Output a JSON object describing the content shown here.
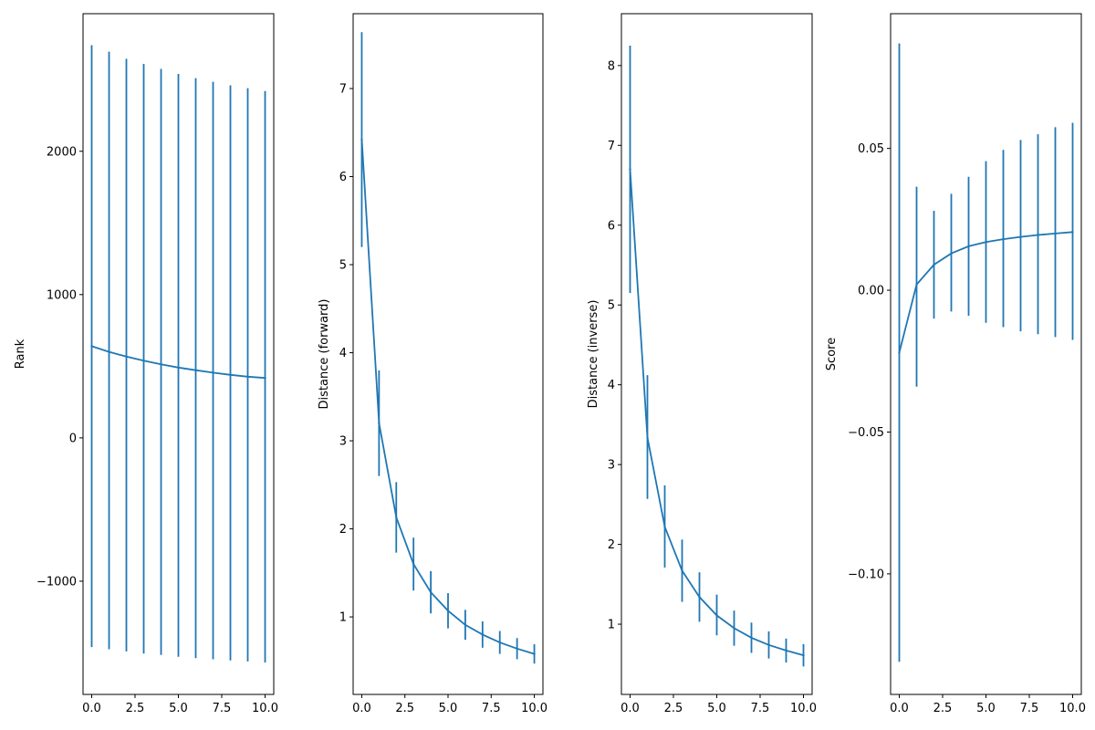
{
  "chart_data": [
    {
      "type": "line",
      "errorbars": true,
      "title": "",
      "xlabel": "",
      "ylabel": "Rank",
      "xlim": [
        -0.5,
        10.5
      ],
      "ylim": [
        -1790,
        2960
      ],
      "xticks": [
        0.0,
        2.5,
        5.0,
        7.5,
        10.0
      ],
      "xtick_labels": [
        "0.0",
        "2.5",
        "5.0",
        "7.5",
        "10.0"
      ],
      "yticks": [
        -1000,
        0,
        1000,
        2000
      ],
      "ytick_labels": [
        "−1000",
        "0",
        "1000",
        "2000"
      ],
      "grid": false,
      "color": "#1f77b4",
      "x": [
        0,
        1,
        2,
        3,
        4,
        5,
        6,
        7,
        8,
        9,
        10
      ],
      "y": [
        640,
        600,
        567,
        539,
        513,
        491,
        472,
        455,
        440,
        427,
        418
      ],
      "yerr_low": [
        -1460,
        -1475,
        -1490,
        -1505,
        -1515,
        -1527,
        -1537,
        -1545,
        -1553,
        -1560,
        -1567
      ],
      "yerr_high": [
        2740,
        2695,
        2645,
        2610,
        2575,
        2540,
        2510,
        2485,
        2460,
        2440,
        2420
      ]
    },
    {
      "type": "line",
      "errorbars": true,
      "title": "",
      "xlabel": "",
      "ylabel": "Distance (forward)",
      "xlim": [
        -0.5,
        10.5
      ],
      "ylim": [
        0.12,
        7.85
      ],
      "xticks": [
        0.0,
        2.5,
        5.0,
        7.5,
        10.0
      ],
      "xtick_labels": [
        "0.0",
        "2.5",
        "5.0",
        "7.5",
        "10.0"
      ],
      "yticks": [
        1,
        2,
        3,
        4,
        5,
        6,
        7
      ],
      "ytick_labels": [
        "1",
        "2",
        "3",
        "4",
        "5",
        "6",
        "7"
      ],
      "grid": false,
      "color": "#1f77b4",
      "x": [
        0,
        1,
        2,
        3,
        4,
        5,
        6,
        7,
        8,
        9,
        10
      ],
      "y": [
        6.42,
        3.2,
        2.13,
        1.6,
        1.28,
        1.07,
        0.91,
        0.8,
        0.71,
        0.64,
        0.58
      ],
      "yerr_low": [
        5.2,
        2.6,
        1.73,
        1.3,
        1.04,
        0.87,
        0.74,
        0.65,
        0.58,
        0.52,
        0.47
      ],
      "yerr_high": [
        7.64,
        3.8,
        2.53,
        1.9,
        1.52,
        1.27,
        1.08,
        0.95,
        0.84,
        0.76,
        0.69
      ]
    },
    {
      "type": "line",
      "errorbars": true,
      "title": "",
      "xlabel": "",
      "ylabel": "Distance (inverse)",
      "xlim": [
        -0.5,
        10.5
      ],
      "ylim": [
        0.12,
        8.65
      ],
      "xticks": [
        0.0,
        2.5,
        5.0,
        7.5,
        10.0
      ],
      "xtick_labels": [
        "0.0",
        "2.5",
        "5.0",
        "7.5",
        "10.0"
      ],
      "yticks": [
        1,
        2,
        3,
        4,
        5,
        6,
        7,
        8
      ],
      "ytick_labels": [
        "1",
        "2",
        "3",
        "4",
        "5",
        "6",
        "7",
        "8"
      ],
      "grid": false,
      "color": "#1f77b4",
      "x": [
        0,
        1,
        2,
        3,
        4,
        5,
        6,
        7,
        8,
        9,
        10
      ],
      "y": [
        6.7,
        3.34,
        2.22,
        1.67,
        1.34,
        1.11,
        0.95,
        0.83,
        0.74,
        0.67,
        0.61
      ],
      "yerr_low": [
        5.15,
        2.57,
        1.71,
        1.28,
        1.03,
        0.86,
        0.73,
        0.64,
        0.57,
        0.52,
        0.47
      ],
      "yerr_high": [
        8.25,
        4.12,
        2.74,
        2.06,
        1.65,
        1.37,
        1.17,
        1.02,
        0.91,
        0.82,
        0.75
      ]
    },
    {
      "type": "line",
      "errorbars": true,
      "title": "",
      "xlabel": "",
      "ylabel": "Score",
      "xlim": [
        -0.5,
        10.5
      ],
      "ylim": [
        -0.1425,
        0.0975
      ],
      "xticks": [
        0.0,
        2.5,
        5.0,
        7.5,
        10.0
      ],
      "xtick_labels": [
        "0.0",
        "2.5",
        "5.0",
        "7.5",
        "10.0"
      ],
      "yticks": [
        -0.1,
        -0.05,
        0.0,
        0.05
      ],
      "ytick_labels": [
        "−0.10",
        "−0.05",
        "0.00",
        "0.05"
      ],
      "grid": false,
      "color": "#1f77b4",
      "x": [
        0,
        1,
        2,
        3,
        4,
        5,
        6,
        7,
        8,
        9,
        10
      ],
      "y": [
        -0.022,
        0.002,
        0.009,
        0.013,
        0.0155,
        0.017,
        0.018,
        0.0188,
        0.0195,
        0.02,
        0.0205
      ],
      "yerr_low": [
        -0.131,
        -0.034,
        -0.01,
        -0.0075,
        -0.009,
        -0.0115,
        -0.013,
        -0.0145,
        -0.0155,
        -0.0165,
        -0.0175
      ],
      "yerr_high": [
        0.087,
        0.0365,
        0.028,
        0.034,
        0.04,
        0.0455,
        0.0495,
        0.053,
        0.055,
        0.0575,
        0.059
      ]
    }
  ]
}
